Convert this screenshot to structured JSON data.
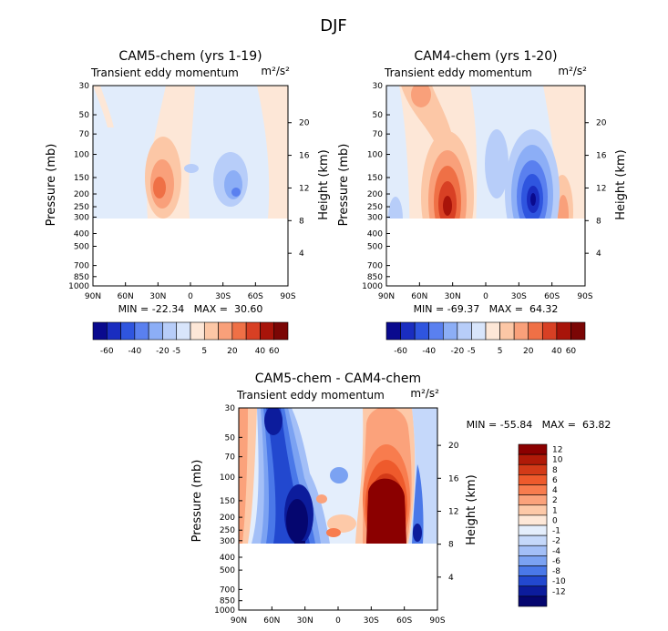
{
  "main_title": "DJF",
  "chart_data": [
    {
      "type": "heatmap",
      "title": "CAM5-chem (yrs 1-19)",
      "subtitle_left": "Transient eddy momentum",
      "subtitle_right": "m²/s²",
      "ylabel": "Pressure (mb)",
      "ylabel_right": "Height (km)",
      "x_ticks": [
        "90N",
        "60N",
        "30N",
        "0",
        "30S",
        "60S",
        "90S"
      ],
      "y_ticks": [
        "30",
        "50",
        "70",
        "100",
        "150",
        "200",
        "250",
        "300",
        "400",
        "500",
        "700",
        "850",
        "1000"
      ],
      "y_ticks_right": [
        "20",
        "16",
        "12",
        "8",
        "4"
      ],
      "xlim": [
        90,
        -90
      ],
      "ylim_mb": [
        1000,
        30
      ],
      "stats": "MIN = -22.34   MAX =  30.60",
      "colorbar_levels": [
        -60,
        -40,
        -20,
        -5,
        5,
        20,
        40,
        60
      ],
      "colorbar_labels": [
        "-60",
        "-40",
        "-20",
        "-5",
        "5",
        "20",
        "40",
        "60"
      ],
      "features": [
        {
          "lat": 28,
          "p": 200,
          "value": 30.6
        },
        {
          "lat": -40,
          "p": 200,
          "value": -22.3
        }
      ]
    },
    {
      "type": "heatmap",
      "title": "CAM4-chem (yrs 1-20)",
      "subtitle_left": "Transient eddy momentum",
      "subtitle_right": "m²/s²",
      "ylabel": "Pressure (mb)",
      "ylabel_right": "Height (km)",
      "x_ticks": [
        "90N",
        "60N",
        "30N",
        "0",
        "30S",
        "60S",
        "90S"
      ],
      "y_ticks": [
        "30",
        "50",
        "70",
        "100",
        "150",
        "200",
        "250",
        "300",
        "400",
        "500",
        "700",
        "850",
        "1000"
      ],
      "y_ticks_right": [
        "20",
        "16",
        "12",
        "8",
        "4"
      ],
      "xlim": [
        90,
        -90
      ],
      "ylim_mb": [
        1000,
        30
      ],
      "stats": "MIN = -69.37   MAX =  64.32",
      "colorbar_levels": [
        -60,
        -40,
        -20,
        -5,
        5,
        20,
        40,
        60
      ],
      "colorbar_labels": [
        "-60",
        "-40",
        "-20",
        "-5",
        "5",
        "20",
        "40",
        "60"
      ],
      "features": [
        {
          "lat": 30,
          "p": 220,
          "value": 64.3
        },
        {
          "lat": -38,
          "p": 220,
          "value": -69.4
        }
      ]
    },
    {
      "type": "heatmap",
      "title": "CAM5-chem - CAM4-chem",
      "subtitle_left": "Transient eddy momentum",
      "subtitle_right": "m²/s²",
      "ylabel": "Pressure (mb)",
      "ylabel_right": "Height (km)",
      "x_ticks": [
        "90N",
        "60N",
        "30N",
        "0",
        "30S",
        "60S",
        "90S"
      ],
      "y_ticks": [
        "30",
        "50",
        "70",
        "100",
        "150",
        "200",
        "250",
        "300",
        "400",
        "500",
        "700",
        "850",
        "1000"
      ],
      "y_ticks_right": [
        "20",
        "16",
        "12",
        "8",
        "4"
      ],
      "xlim": [
        90,
        -90
      ],
      "ylim_mb": [
        1000,
        30
      ],
      "stats": "MIN = -55.84   MAX =  63.82",
      "colorbar_levels": [
        12,
        10,
        8,
        6,
        4,
        2,
        1,
        0,
        -1,
        -2,
        -4,
        -6,
        -8,
        -10,
        -12
      ],
      "colorbar_labels": [
        "12",
        "10",
        "8",
        "6",
        "4",
        "2",
        "1",
        "0",
        "-1",
        "-2",
        "-4",
        "-6",
        "-8",
        "-10",
        "-12"
      ],
      "features": [
        {
          "lat": 45,
          "p": 200,
          "value": -55.8
        },
        {
          "lat": -45,
          "p": 150,
          "value": 63.8
        }
      ]
    }
  ],
  "colors": {
    "panel_bg": "#e1ecfb",
    "diverging_blue_to_red": [
      "#0a0a8e",
      "#1a2dc0",
      "#2f55df",
      "#5a80ef",
      "#8caef6",
      "#b7cdf9",
      "#d8e5fb",
      "#fde7d7",
      "#fcc7a6",
      "#f9a07a",
      "#ef7046",
      "#d84024",
      "#a8140a",
      "#7b0605"
    ],
    "diff_colorbar_top_to_bottom": [
      "#8b0000",
      "#b01a08",
      "#d33a18",
      "#ee5a2c",
      "#f87c4e",
      "#fba27b",
      "#fdc9a8",
      "#fee8d8",
      "#e4eefc",
      "#c5d8fa",
      "#a3bff7",
      "#7ba2f2",
      "#4a78e8",
      "#2248cf",
      "#0c1c9c",
      "#05066f"
    ]
  }
}
